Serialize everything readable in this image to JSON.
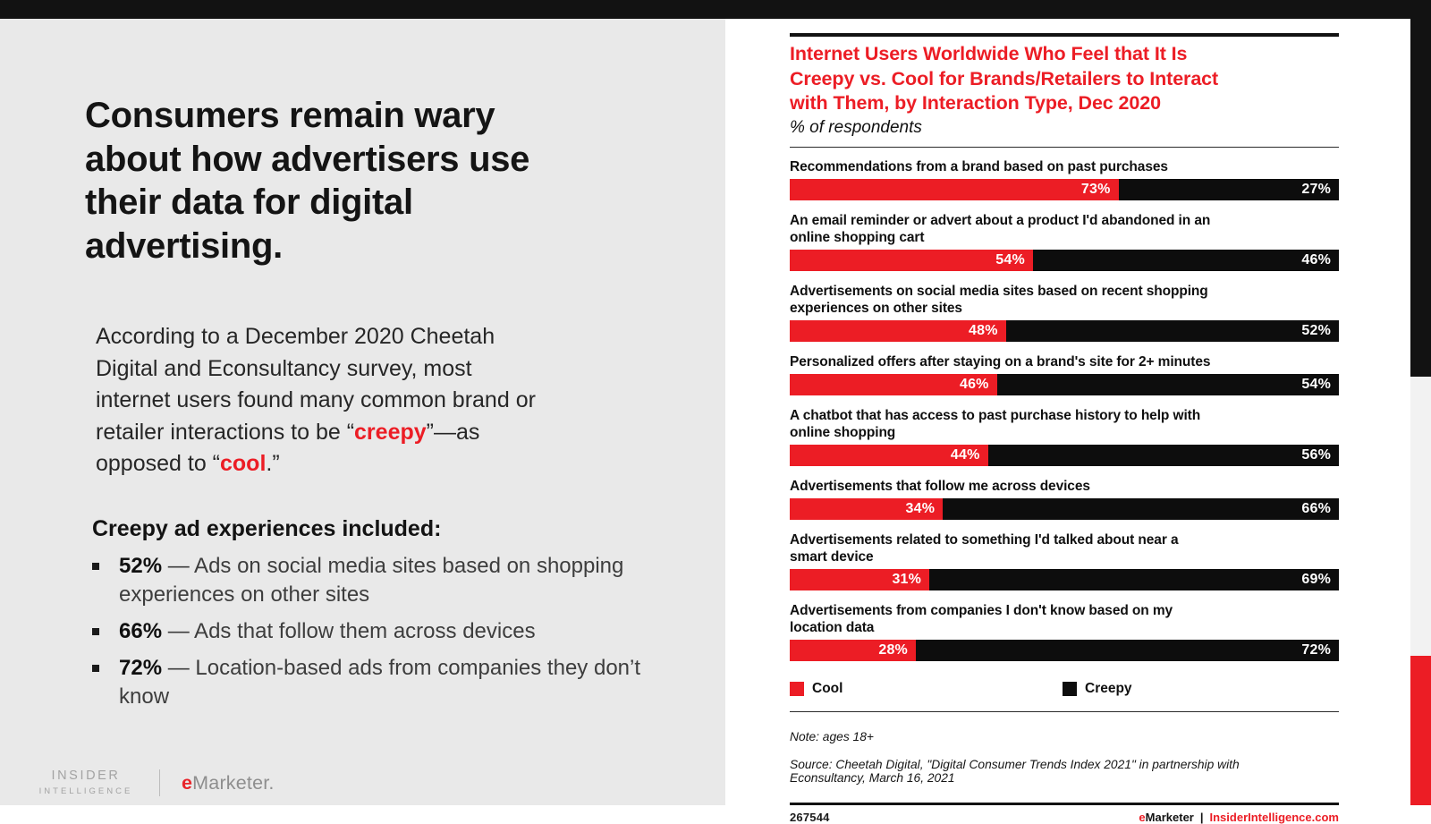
{
  "left_panel": {
    "headline": "Consumers remain wary\nabout how advertisers use\ntheir data for digital\nadvertising.",
    "paragraph": {
      "p1": "According to a December 2020 Cheetah\nDigital and Econsultancy survey, most\ninternet users found many common brand or\nretailer interactions to be “",
      "red1": "creepy",
      "p2": "”—as\nopposed to “",
      "red2": "cool",
      "p3": ".”"
    },
    "list_heading": "Creepy ad experiences included:",
    "bullets": [
      {
        "pct": "52%",
        "text": " — Ads on social media sites based on shopping\nexperiences on other sites"
      },
      {
        "pct": "66%",
        "text": " — Ads that follow them across devices"
      },
      {
        "pct": "72%",
        "text": " — Location-based ads from companies they don’t know"
      }
    ],
    "logo": {
      "insider_line1": "INSIDER",
      "insider_line2": "INTELLIGENCE",
      "emarketer_e": "e",
      "emarketer_rest": "Marketer."
    }
  },
  "chart_data": {
    "type": "bar",
    "orientation": "horizontal-stacked",
    "title": "Internet Users Worldwide Who Feel that It Is\nCreepy vs. Cool for Brands/Retailers to Interact\nwith Them, by Interaction Type, Dec 2020",
    "subtitle": "% of respondents",
    "categories": [
      "Recommendations from a brand based on past purchases",
      "An email reminder or advert about a product I'd abandoned in an\nonline shopping cart",
      "Advertisements on social media sites based on recent shopping\nexperiences on other sites",
      "Personalized offers after staying on a brand's site for 2+ minutes",
      "A chatbot that has access to past purchase history to help with\nonline shopping",
      "Advertisements that follow me across devices",
      "Advertisements related to something I'd talked about near a\nsmart device",
      "Advertisements from companies I don't know based on my\nlocation data"
    ],
    "series": [
      {
        "name": "Cool",
        "color": "#ec1d25",
        "values": [
          73,
          54,
          48,
          46,
          44,
          34,
          31,
          28
        ]
      },
      {
        "name": "Creepy",
        "color": "#0d0d0d",
        "values": [
          27,
          46,
          52,
          54,
          56,
          66,
          69,
          72
        ]
      }
    ],
    "legend": {
      "cool": "Cool",
      "creepy": "Creepy"
    },
    "layout": {
      "red_fill_ratio": 0.82,
      "value_suffix": "%",
      "legend_position": "bottom",
      "grid": false
    },
    "note": "Note: ages 18+",
    "source": "Source: Cheetah Digital, \"Digital Consumer Trends Index 2021\" in partnership with\nEconsultancy, March 16, 2021",
    "chart_id": "267544",
    "footer_brand_e": "e",
    "footer_brand_rest": "Marketer",
    "footer_separator": "|",
    "footer_site": "InsiderIntelligence.com"
  }
}
